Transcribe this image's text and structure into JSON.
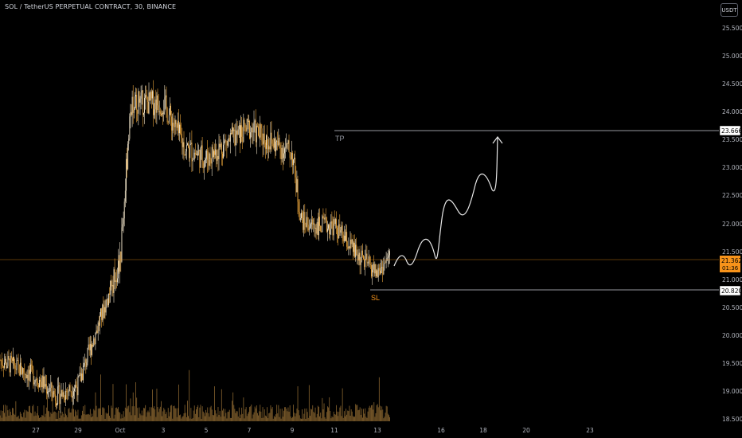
{
  "header": {
    "title": "SOL / TetherUS PERPETUAL CONTRACT, 30, BINANCE",
    "currency_button": "USDT"
  },
  "colors": {
    "background": "#000000",
    "candles": "#e8a33a",
    "candle_light": "#f1e3c8",
    "volume": "#7a5a2a",
    "current_price": "#f7931a",
    "levels": "#d1d4dc",
    "sl_label": "#f7931a",
    "tp_label": "#9598a1"
  },
  "price_axis": {
    "labels": [
      "25.500",
      "25.000",
      "24.500",
      "24.000",
      "23.500",
      "23.000",
      "22.500",
      "22.000",
      "21.500",
      "21.000",
      "20.500",
      "20.000",
      "19.500",
      "19.000",
      "18.500"
    ]
  },
  "time_axis": {
    "labels": [
      "27",
      "29",
      "Oct",
      "3",
      "5",
      "7",
      "9",
      "11",
      "13",
      "16",
      "18",
      "20",
      "23"
    ]
  },
  "levels": {
    "tp": {
      "label": "TP",
      "price": "23.666"
    },
    "sl": {
      "label": "SL",
      "price": "20.820"
    },
    "current": {
      "price": "21.362",
      "countdown": "01:36"
    }
  },
  "chart_data": {
    "type": "candlestick",
    "symbol": "SOL / TetherUS PERPETUAL CONTRACT",
    "interval": "30",
    "exchange": "BINANCE",
    "ylim": [
      18.5,
      25.5
    ],
    "current_price": 21.362,
    "take_profit": 23.666,
    "stop_loss": 20.82,
    "price_path": [
      {
        "t": "26",
        "p": 19.6
      },
      {
        "t": "27",
        "p": 19.3
      },
      {
        "t": "28",
        "p": 18.95
      },
      {
        "t": "29",
        "p": 19.15
      },
      {
        "t": "30",
        "p": 20.25
      },
      {
        "t": "Oct",
        "p": 21.35
      },
      {
        "t": "1.5",
        "p": 24.2
      },
      {
        "t": "3",
        "p": 24.2
      },
      {
        "t": "4",
        "p": 23.4
      },
      {
        "t": "5",
        "p": 23.2
      },
      {
        "t": "6",
        "p": 23.5
      },
      {
        "t": "7",
        "p": 23.75
      },
      {
        "t": "8",
        "p": 23.5
      },
      {
        "t": "9",
        "p": 23.3
      },
      {
        "t": "9.5",
        "p": 22.1
      },
      {
        "t": "10",
        "p": 22.0
      },
      {
        "t": "11",
        "p": 22.0
      },
      {
        "t": "12",
        "p": 21.5
      },
      {
        "t": "13",
        "p": 21.15
      },
      {
        "t": "13.5",
        "p": 21.45
      }
    ],
    "projection": [
      21.35,
      21.55,
      21.3,
      21.75,
      21.35,
      22.3,
      21.95,
      22.85,
      22.55,
      23.55
    ]
  }
}
